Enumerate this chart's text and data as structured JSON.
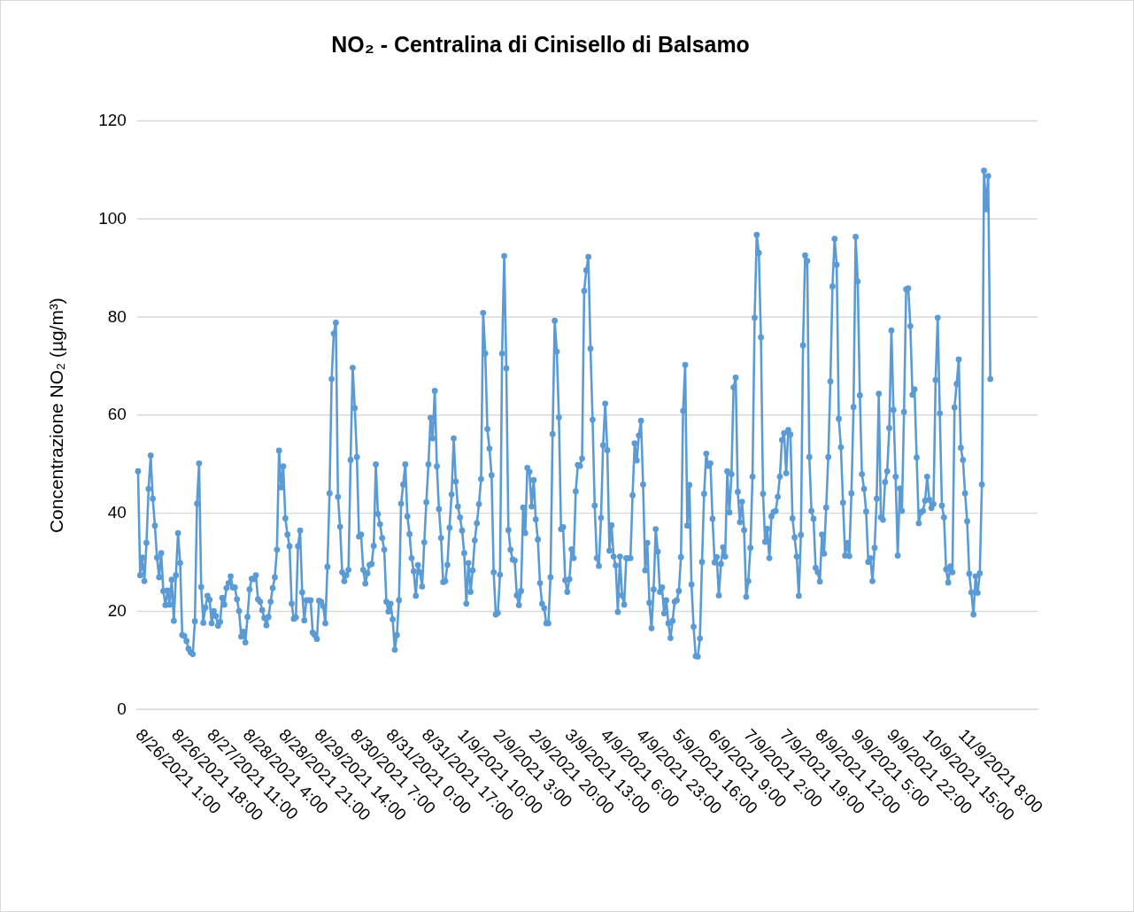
{
  "chart_data": {
    "type": "line",
    "title": "NO₂ - Centralina di Cinisello di Balsamo",
    "ylabel": "Concentrazione NO₂ (µg/m³)",
    "categories": [
      "8/26/2021 1:00",
      null,
      null,
      null,
      null,
      null,
      null,
      null,
      null,
      null,
      null,
      null,
      null,
      null,
      null,
      null,
      null,
      "8/26/2021 18:00",
      null,
      null,
      null,
      null,
      null,
      null,
      null,
      null,
      null,
      null,
      null,
      null,
      null,
      null,
      null,
      null,
      "8/27/2021 11:00",
      null,
      null,
      null,
      null,
      null,
      null,
      null,
      null,
      null,
      null,
      null,
      null,
      null,
      null,
      null,
      null,
      "8/28/2021 4:00",
      null,
      null,
      null,
      null,
      null,
      null,
      null,
      null,
      null,
      null,
      null,
      null,
      null,
      null,
      null,
      null,
      "8/28/2021 21:00",
      null,
      null,
      null,
      null,
      null,
      null,
      null,
      null,
      null,
      null,
      null,
      null,
      null,
      null,
      null,
      null,
      "8/29/2021 14:00",
      null,
      null,
      null,
      null,
      null,
      null,
      null,
      null,
      null,
      null,
      null,
      null,
      null,
      null,
      null,
      null,
      "8/30/2021 7:00",
      null,
      null,
      null,
      null,
      null,
      null,
      null,
      null,
      null,
      null,
      null,
      null,
      null,
      null,
      null,
      null,
      "8/31/2021 0:00",
      null,
      null,
      null,
      null,
      null,
      null,
      null,
      null,
      null,
      null,
      null,
      null,
      null,
      null,
      null,
      null,
      "8/31/2021 17:00",
      null,
      null,
      null,
      null,
      null,
      null,
      null,
      null,
      null,
      null,
      null,
      null,
      null,
      null,
      null,
      null,
      "1/9/2021 10:00",
      null,
      null,
      null,
      null,
      null,
      null,
      null,
      null,
      null,
      null,
      null,
      null,
      null,
      null,
      null,
      null,
      "2/9/2021 3:00",
      null,
      null,
      null,
      null,
      null,
      null,
      null,
      null,
      null,
      null,
      null,
      null,
      null,
      null,
      null,
      null,
      "2/9/2021 20:00",
      null,
      null,
      null,
      null,
      null,
      null,
      null,
      null,
      null,
      null,
      null,
      null,
      null,
      null,
      null,
      null,
      "3/9/2021 13:00",
      null,
      null,
      null,
      null,
      null,
      null,
      null,
      null,
      null,
      null,
      null,
      null,
      null,
      null,
      null,
      null,
      "4/9/2021 6:00",
      null,
      null,
      null,
      null,
      null,
      null,
      null,
      null,
      null,
      null,
      null,
      null,
      null,
      null,
      null,
      null,
      "4/9/2021 23:00",
      null,
      null,
      null,
      null,
      null,
      null,
      null,
      null,
      null,
      null,
      null,
      null,
      null,
      null,
      null,
      null,
      "5/9/2021 16:00",
      null,
      null,
      null,
      null,
      null,
      null,
      null,
      null,
      null,
      null,
      null,
      null,
      null,
      null,
      null,
      null,
      "6/9/2021 9:00",
      null,
      null,
      null,
      null,
      null,
      null,
      null,
      null,
      null,
      null,
      null,
      null,
      null,
      null,
      null,
      null,
      "7/9/2021 2:00",
      null,
      null,
      null,
      null,
      null,
      null,
      null,
      null,
      null,
      null,
      null,
      null,
      null,
      null,
      null,
      null,
      "7/9/2021 19:00",
      null,
      null,
      null,
      null,
      null,
      null,
      null,
      null,
      null,
      null,
      null,
      null,
      null,
      null,
      null,
      null,
      "8/9/2021 12:00",
      null,
      null,
      null,
      null,
      null,
      null,
      null,
      null,
      null,
      null,
      null,
      null,
      null,
      null,
      null,
      null,
      "9/9/2021 5:00",
      null,
      null,
      null,
      null,
      null,
      null,
      null,
      null,
      null,
      null,
      null,
      null,
      null,
      null,
      null,
      null,
      "9/9/2021 22:00",
      null,
      null,
      null,
      null,
      null,
      null,
      null,
      null,
      null,
      null,
      null,
      null,
      null,
      null,
      null,
      null,
      "10/9/2021 15:00",
      null,
      null,
      null,
      null,
      null,
      null,
      null,
      null,
      null,
      null,
      null,
      null,
      null,
      null,
      null,
      null,
      "11/9/2021 8:00",
      null,
      null,
      null,
      null,
      null,
      null,
      null,
      null,
      null,
      null,
      null,
      null,
      null,
      null,
      null,
      null,
      null,
      null,
      null,
      null,
      null,
      null,
      null,
      null,
      null,
      null,
      null,
      null,
      null,
      null,
      null,
      null,
      null,
      null,
      null,
      null
    ],
    "ylim": [
      0,
      120
    ],
    "yticks": [
      0,
      20,
      40,
      60,
      80,
      100,
      120
    ],
    "grid": "y",
    "marker": "circle",
    "line_style": "solid",
    "series": [
      {
        "color": "#5b9bd5",
        "values": [
          48.6,
          27.4,
          31,
          26.2,
          34,
          45,
          51.8,
          43,
          37.5,
          31,
          27,
          31.9,
          24.2,
          21.3,
          24.3,
          21.4,
          26.5,
          18.1,
          27.4,
          36,
          29.9,
          15.2,
          15,
          14,
          12.4,
          11.7,
          11.3,
          18,
          42,
          50.2,
          25,
          17.7,
          20.8,
          23.2,
          22.4,
          17.6,
          20.1,
          19.1,
          17.1,
          17.9,
          22.8,
          21.4,
          24.8,
          25.8,
          27.2,
          24.9,
          24.9,
          22.5,
          20.1,
          14.9,
          15.9,
          13.7,
          18.9,
          24.5,
          26.7,
          26.6,
          27.4,
          22.5,
          22,
          20.3,
          18.7,
          17.2,
          18.9,
          22,
          24.8,
          27,
          32.6,
          52.8,
          45.3,
          49.6,
          39,
          35.7,
          33.3,
          21.6,
          18.5,
          18.8,
          33.3,
          36.5,
          23.9,
          18.2,
          22.3,
          22.3,
          22.3,
          15.7,
          15.2,
          14.4,
          22.2,
          22,
          21.1,
          17.6,
          29.1,
          44.1,
          67.4,
          76.7,
          78.9,
          43.4,
          37.3,
          28,
          26.2,
          27.4,
          28.5,
          50.9,
          69.7,
          61.5,
          51.5,
          35.3,
          35.7,
          28.5,
          25.7,
          27.8,
          29.5,
          29.7,
          33.4,
          50,
          39.9,
          37.8,
          35,
          32.6,
          22,
          20,
          21.6,
          18.4,
          12.2,
          15.2,
          22.3,
          42,
          45.9,
          50,
          39.4,
          35.8,
          30.9,
          28.2,
          23.2,
          29.5,
          28,
          25.1,
          34.1,
          42.3,
          50,
          59.5,
          55.3,
          65,
          49.6,
          40.9,
          35,
          26,
          26.2,
          29.5,
          37.1,
          43.9,
          55.3,
          46.5,
          41.4,
          39.2,
          36.5,
          31.9,
          21.6,
          29.9,
          24,
          28.4,
          34.5,
          38,
          41.9,
          47,
          80.9,
          72.6,
          57.2,
          53.2,
          47.8,
          28,
          19.4,
          19.7,
          27.5,
          72.6,
          92.5,
          69.6,
          36.6,
          32.6,
          30.6,
          30.4,
          23.3,
          21.3,
          24.2,
          41.2,
          36,
          49.3,
          48.5,
          41.4,
          46.8,
          38.8,
          34.7,
          25.8,
          21.6,
          20.7,
          17.6,
          17.6,
          27,
          56.2,
          79.3,
          73,
          59.6,
          36.8,
          37.2,
          26.4,
          24,
          26.6,
          32.7,
          30.9,
          44.5,
          49.9,
          49.7,
          51.2,
          85.4,
          89.6,
          92.3,
          73.6,
          59.1,
          41.6,
          30.9,
          29.3,
          39.1,
          53.9,
          62.4,
          52.9,
          32.4,
          37.6,
          31.2,
          29.4,
          19.9,
          31.2,
          23.3,
          21.4,
          30.9,
          30.9,
          30.9,
          43.7,
          54.3,
          50.8,
          55.9,
          58.9,
          45.9,
          28.4,
          34,
          21.8,
          16.6,
          24.5,
          36.8,
          32.2,
          24,
          24.9,
          19.6,
          22.3,
          17.6,
          14.6,
          18.1,
          22,
          22.3,
          24.2,
          31.1,
          60.9,
          70.3,
          37.5,
          45.8,
          25.5,
          16.9,
          10.9,
          10.8,
          14.5,
          30.1,
          44,
          52.2,
          49.7,
          50.2,
          38.9,
          30,
          31.1,
          23.3,
          29.7,
          33.1,
          31.2,
          48.6,
          40.2,
          48,
          65.7,
          67.7,
          44.4,
          38.2,
          42.4,
          36.6,
          23,
          26.2,
          33,
          47.5,
          79.9,
          96.8,
          93.1,
          75.9,
          44,
          34.2,
          36.9,
          30.9,
          39.4,
          40.3,
          40.5,
          43.4,
          47.5,
          55,
          56.4,
          48.2,
          57,
          56.1,
          39,
          35.1,
          31.2,
          23.2,
          35.6,
          74.3,
          92.6,
          91.5,
          51.5,
          40.5,
          38.9,
          28.9,
          28,
          26.1,
          35.7,
          31.8,
          41.2,
          51.5,
          66.9,
          86.3,
          96,
          90.7,
          59.3,
          53.5,
          42.2,
          31.4,
          34,
          31.3,
          44.1,
          61.7,
          96.4,
          87.3,
          64.1,
          48,
          45,
          40.4,
          30.1,
          30.9,
          26.2,
          33,
          43,
          64.4,
          39.2,
          38.7,
          46.4,
          48.6,
          57.4,
          77.3,
          61.1,
          47.5,
          31.4,
          45.1,
          40.5,
          60.7,
          85.7,
          85.9,
          78.2,
          64.2,
          65.3,
          51.4,
          38,
          40.2,
          40.5,
          42.6,
          47.5,
          42.8,
          41.1,
          41.9,
          67.2,
          79.9,
          60.4,
          41.6,
          39.2,
          28.6,
          25.9,
          29.2,
          28,
          61.6,
          66.4,
          71.4,
          53.4,
          50.9,
          44.1,
          38.4,
          27.7,
          23.9,
          19.4,
          27.2,
          23.8,
          27.8,
          45.9,
          109.9,
          102,
          108.8,
          67.4,
          null,
          null,
          null,
          null,
          null,
          null,
          null,
          null,
          null,
          null,
          null,
          null,
          null,
          null,
          null,
          null,
          null,
          null,
          null,
          null,
          null,
          null
        ]
      }
    ]
  }
}
